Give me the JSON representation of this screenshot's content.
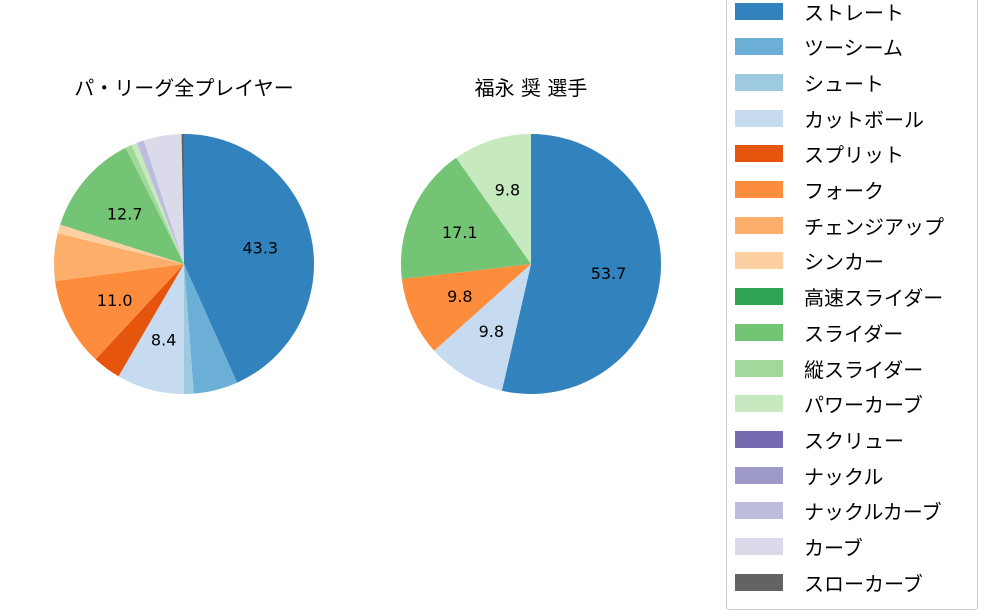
{
  "chart_data": [
    {
      "type": "pie",
      "title": "パ・リーグ全プレイヤー",
      "start_angle": 90,
      "direction": "clockwise",
      "categories": [
        "ストレート",
        "ツーシーム",
        "シュート",
        "カットボール",
        "スプリット",
        "フォーク",
        "チェンジアップ",
        "シンカー",
        "高速スライダー",
        "スライダー",
        "縦スライダー",
        "パワーカーブ",
        "スクリュー",
        "ナックル",
        "ナックルカーブ",
        "カーブ",
        "スローカーブ"
      ],
      "values": [
        43.3,
        5.5,
        1.2,
        8.4,
        3.5,
        11.0,
        5.9,
        1.1,
        0.0,
        12.7,
        0.8,
        0.7,
        0.0,
        0.0,
        0.9,
        4.7,
        0.3
      ],
      "labels_shown": {
        "ストレート": "43.3",
        "カットボール": "8.4",
        "フォーク": "11.0",
        "スライダー": "12.7"
      }
    },
    {
      "type": "pie",
      "title": "福永 奨  選手",
      "start_angle": 90,
      "direction": "clockwise",
      "categories": [
        "ストレート",
        "カットボール",
        "フォーク",
        "スライダー",
        "パワーカーブ"
      ],
      "values": [
        53.7,
        9.8,
        9.8,
        17.1,
        9.8
      ],
      "labels_shown": {
        "ストレート": "53.7",
        "カットボール": "9.8",
        "フォーク": "9.8",
        "スライダー": "17.1",
        "パワーカーブ": "9.8"
      }
    }
  ],
  "titles": {
    "left": "パ・リーグ全プレイヤー",
    "right": "福永 奨  選手"
  },
  "legend": [
    {
      "label": "ストレート",
      "color": "#3182bd"
    },
    {
      "label": "ツーシーム",
      "color": "#6baed6"
    },
    {
      "label": "シュート",
      "color": "#9ecae1"
    },
    {
      "label": "カットボール",
      "color": "#c6dbef"
    },
    {
      "label": "スプリット",
      "color": "#e6550d"
    },
    {
      "label": "フォーク",
      "color": "#fd8d3c"
    },
    {
      "label": "チェンジアップ",
      "color": "#fdae6b"
    },
    {
      "label": "シンカー",
      "color": "#fdd0a2"
    },
    {
      "label": "高速スライダー",
      "color": "#31a354"
    },
    {
      "label": "スライダー",
      "color": "#74c476"
    },
    {
      "label": "縦スライダー",
      "color": "#a1d99b"
    },
    {
      "label": "パワーカーブ",
      "color": "#c7e9c0"
    },
    {
      "label": "スクリュー",
      "color": "#756bb1"
    },
    {
      "label": "ナックル",
      "color": "#9e9ac8"
    },
    {
      "label": "ナックルカーブ",
      "color": "#bcbddc"
    },
    {
      "label": "カーブ",
      "color": "#dadaeb"
    },
    {
      "label": "スローカーブ",
      "color": "#636363"
    }
  ]
}
